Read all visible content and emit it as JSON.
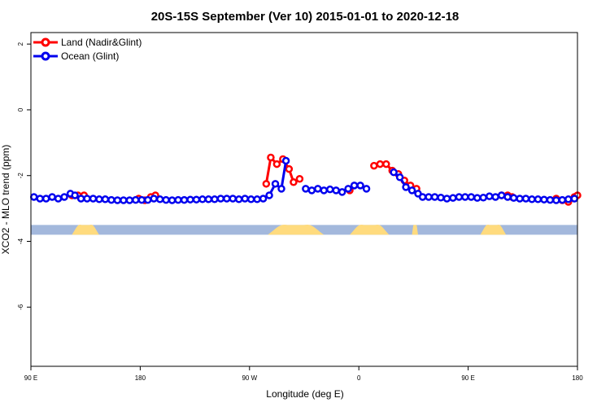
{
  "chart_data": {
    "type": "line",
    "title": "20S-15S September (Ver 10)   2015-01-01 to 2020-12-18",
    "xlabel": "Longitude (deg E)",
    "ylabel": "XCO2 - MLO trend (ppm)",
    "xlim": [
      90,
      450
    ],
    "ylim": [
      -7.8,
      2.35
    ],
    "x_ticks": [
      {
        "value": 90,
        "label": "90 E"
      },
      {
        "value": 162,
        "label": "180"
      },
      {
        "value": 234,
        "label": "90 W"
      },
      {
        "value": 306,
        "label": "0"
      },
      {
        "value": 378,
        "label": "90 E"
      },
      {
        "value": 450,
        "label": "180"
      }
    ],
    "y_ticks": [
      {
        "value": 2,
        "label": "2"
      },
      {
        "value": 0,
        "label": "0"
      },
      {
        "value": -2,
        "label": "-2"
      },
      {
        "value": -4,
        "label": "-4"
      },
      {
        "value": -6,
        "label": "-6"
      }
    ],
    "legend": {
      "placement": "top-left"
    },
    "series": [
      {
        "name": "Land (Nadir&Glint)",
        "color": "#ff0000",
        "points": [
          [
            117,
            -2.6
          ],
          [
            121,
            -2.6
          ],
          [
            125,
            -2.6
          ],
          [
            161,
            -2.7
          ],
          [
            165,
            -2.75
          ],
          [
            169,
            -2.65
          ],
          [
            172,
            -2.6
          ],
          [
            245,
            -2.25
          ],
          [
            248,
            -1.45
          ],
          [
            252,
            -1.65
          ],
          [
            256,
            -1.5
          ],
          [
            260,
            -1.8
          ],
          [
            263,
            -2.2
          ],
          [
            267,
            -2.1
          ],
          [
            300,
            -2.45
          ],
          [
            316,
            -1.7
          ],
          [
            320,
            -1.65
          ],
          [
            324,
            -1.65
          ],
          [
            328,
            -1.85
          ],
          [
            332,
            -1.95
          ],
          [
            336,
            -2.15
          ],
          [
            340,
            -2.3
          ],
          [
            344,
            -2.4
          ],
          [
            400,
            -2.6
          ],
          [
            404,
            -2.6
          ],
          [
            407,
            -2.65
          ],
          [
            436,
            -2.7
          ],
          [
            440,
            -2.75
          ],
          [
            444,
            -2.8
          ],
          [
            448,
            -2.65
          ],
          [
            450,
            -2.6
          ]
        ],
        "segments": [
          [
            0,
            2
          ],
          [
            3,
            6
          ],
          [
            7,
            13
          ],
          [
            15,
            19
          ],
          [
            20,
            22
          ],
          [
            23,
            25
          ],
          [
            26,
            30
          ]
        ]
      },
      {
        "name": "Ocean (Glint)",
        "color": "#0000ee",
        "points": [
          [
            92,
            -2.65
          ],
          [
            96,
            -2.7
          ],
          [
            100,
            -2.7
          ],
          [
            104,
            -2.65
          ],
          [
            108,
            -2.7
          ],
          [
            112,
            -2.65
          ],
          [
            116,
            -2.55
          ],
          [
            119,
            -2.6
          ],
          [
            123,
            -2.7
          ],
          [
            127,
            -2.7
          ],
          [
            131,
            -2.7
          ],
          [
            135,
            -2.72
          ],
          [
            139,
            -2.72
          ],
          [
            143,
            -2.74
          ],
          [
            147,
            -2.75
          ],
          [
            151,
            -2.75
          ],
          [
            155,
            -2.75
          ],
          [
            159,
            -2.74
          ],
          [
            163,
            -2.74
          ],
          [
            167,
            -2.74
          ],
          [
            171,
            -2.7
          ],
          [
            175,
            -2.72
          ],
          [
            179,
            -2.74
          ],
          [
            183,
            -2.75
          ],
          [
            187,
            -2.74
          ],
          [
            191,
            -2.74
          ],
          [
            195,
            -2.73
          ],
          [
            199,
            -2.73
          ],
          [
            203,
            -2.72
          ],
          [
            207,
            -2.72
          ],
          [
            211,
            -2.72
          ],
          [
            215,
            -2.7
          ],
          [
            219,
            -2.7
          ],
          [
            223,
            -2.7
          ],
          [
            227,
            -2.72
          ],
          [
            231,
            -2.7
          ],
          [
            235,
            -2.72
          ],
          [
            239,
            -2.72
          ],
          [
            243,
            -2.7
          ],
          [
            247,
            -2.6
          ],
          [
            251,
            -2.25
          ],
          [
            255,
            -2.4
          ],
          [
            258,
            -1.55
          ],
          [
            271,
            -2.4
          ],
          [
            275,
            -2.45
          ],
          [
            279,
            -2.4
          ],
          [
            283,
            -2.45
          ],
          [
            287,
            -2.42
          ],
          [
            291,
            -2.45
          ],
          [
            295,
            -2.5
          ],
          [
            299,
            -2.4
          ],
          [
            303,
            -2.3
          ],
          [
            307,
            -2.3
          ],
          [
            311,
            -2.4
          ],
          [
            329,
            -1.9
          ],
          [
            333,
            -2.05
          ],
          [
            337,
            -2.35
          ],
          [
            341,
            -2.45
          ],
          [
            345,
            -2.55
          ],
          [
            348,
            -2.65
          ],
          [
            352,
            -2.65
          ],
          [
            356,
            -2.65
          ],
          [
            360,
            -2.67
          ],
          [
            364,
            -2.7
          ],
          [
            368,
            -2.68
          ],
          [
            372,
            -2.65
          ],
          [
            376,
            -2.65
          ],
          [
            380,
            -2.65
          ],
          [
            384,
            -2.68
          ],
          [
            388,
            -2.67
          ],
          [
            392,
            -2.63
          ],
          [
            396,
            -2.65
          ],
          [
            400,
            -2.6
          ],
          [
            404,
            -2.65
          ],
          [
            408,
            -2.68
          ],
          [
            412,
            -2.7
          ],
          [
            416,
            -2.7
          ],
          [
            420,
            -2.72
          ],
          [
            424,
            -2.72
          ],
          [
            428,
            -2.73
          ],
          [
            432,
            -2.74
          ],
          [
            436,
            -2.75
          ],
          [
            440,
            -2.74
          ],
          [
            444,
            -2.72
          ],
          [
            448,
            -2.7
          ]
        ],
        "segments": [
          [
            0,
            42
          ],
          [
            43,
            53
          ],
          [
            54,
            84
          ]
        ]
      }
    ],
    "surface_bar": {
      "y": -3.65,
      "ocean_color": "#a3b8dc",
      "land_color": "#ffdb7e",
      "land_ranges": [
        [
          117,
          135
        ],
        [
          246,
          283
        ],
        [
          300,
          326
        ],
        [
          341,
          345
        ],
        [
          386,
          403
        ]
      ]
    }
  }
}
